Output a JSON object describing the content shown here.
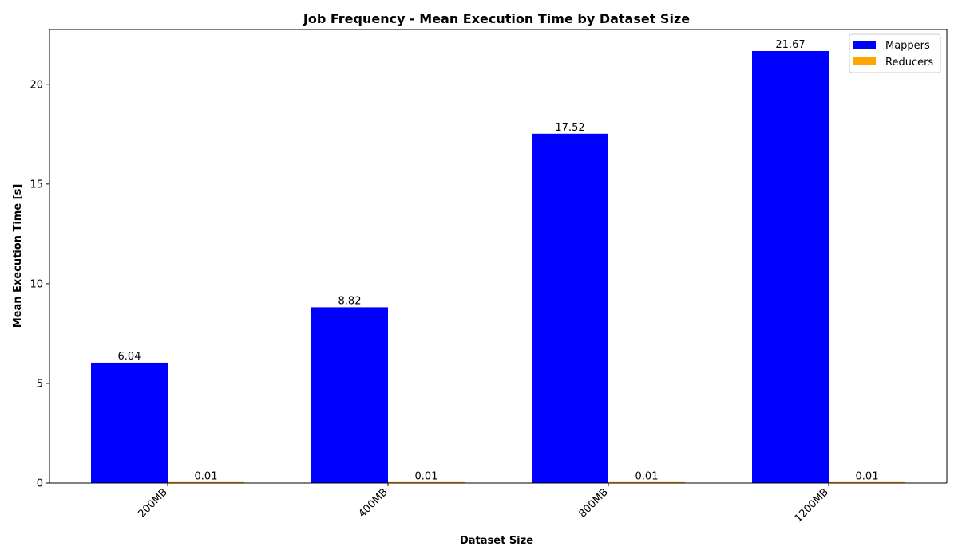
{
  "chart_data": {
    "type": "bar",
    "title": "Job Frequency - Mean Execution Time by Dataset Size",
    "xlabel": "Dataset Size",
    "ylabel": "Mean Execution Time [s]",
    "categories": [
      "200MB",
      "400MB",
      "800MB",
      "1200MB"
    ],
    "series": [
      {
        "name": "Mappers",
        "values": [
          6.04,
          8.82,
          17.52,
          21.67
        ],
        "labels": [
          "6.04",
          "8.82",
          "17.52",
          "21.67"
        ],
        "color": "#0000ff"
      },
      {
        "name": "Reducers",
        "values": [
          0.01,
          0.01,
          0.01,
          0.01
        ],
        "labels": [
          "0.01",
          "0.01",
          "0.01",
          "0.01"
        ],
        "color": "#ffa500"
      }
    ],
    "ylim": [
      0,
      22.75
    ],
    "yticks": [
      0,
      5,
      10,
      15,
      20
    ],
    "grid": false,
    "legend_position": "top-right",
    "x_tick_rotation": "45 degrees"
  }
}
